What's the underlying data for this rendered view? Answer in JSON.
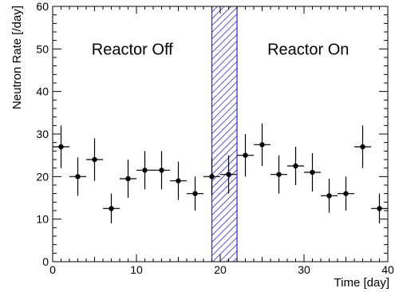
{
  "chart_data": {
    "type": "scatter",
    "title": "",
    "xlabel": "Time [day]",
    "ylabel": "Neutron Rate [/day]",
    "xlim": [
      0,
      40
    ],
    "ylim": [
      0,
      60
    ],
    "x_ticks": [
      0,
      10,
      20,
      30,
      40
    ],
    "y_ticks": [
      0,
      10,
      20,
      30,
      40,
      50,
      60
    ],
    "grid": false,
    "annotations": [
      {
        "text": "Reactor Off",
        "x": 9.5,
        "y": 50
      },
      {
        "text": "Reactor On",
        "x": 30.5,
        "y": 50
      }
    ],
    "shaded_region": {
      "x_start": 19,
      "x_end": 22,
      "pattern": "hatched",
      "color": "#2a2acc"
    },
    "points": [
      {
        "x": 1,
        "y": 27,
        "xerr": 1,
        "yerr": 5
      },
      {
        "x": 3,
        "y": 20,
        "xerr": 1,
        "yerr": 4.5
      },
      {
        "x": 5,
        "y": 24,
        "xerr": 1,
        "yerr": 5
      },
      {
        "x": 7,
        "y": 12.5,
        "xerr": 1,
        "yerr": 3.5
      },
      {
        "x": 9,
        "y": 19.5,
        "xerr": 1,
        "yerr": 4.5
      },
      {
        "x": 11,
        "y": 21.5,
        "xerr": 1,
        "yerr": 4.5
      },
      {
        "x": 13,
        "y": 21.5,
        "xerr": 1,
        "yerr": 4.5
      },
      {
        "x": 15,
        "y": 19,
        "xerr": 1,
        "yerr": 4.5
      },
      {
        "x": 17,
        "y": 16,
        "xerr": 1,
        "yerr": 4
      },
      {
        "x": 19,
        "y": 20,
        "xerr": 1,
        "yerr": 4.5
      },
      {
        "x": 21,
        "y": 20.5,
        "xerr": 1,
        "yerr": 4.5
      },
      {
        "x": 23,
        "y": 25,
        "xerr": 1,
        "yerr": 5
      },
      {
        "x": 25,
        "y": 27.5,
        "xerr": 1,
        "yerr": 5
      },
      {
        "x": 27,
        "y": 20.5,
        "xerr": 1,
        "yerr": 4.5
      },
      {
        "x": 29,
        "y": 22.5,
        "xerr": 1,
        "yerr": 4.5
      },
      {
        "x": 31,
        "y": 21,
        "xerr": 1,
        "yerr": 4.5
      },
      {
        "x": 33,
        "y": 15.5,
        "xerr": 1,
        "yerr": 4
      },
      {
        "x": 35,
        "y": 16,
        "xerr": 1,
        "yerr": 4
      },
      {
        "x": 37,
        "y": 27,
        "xerr": 1,
        "yerr": 5
      },
      {
        "x": 39,
        "y": 12.5,
        "xerr": 1,
        "yerr": 3.5
      }
    ]
  }
}
